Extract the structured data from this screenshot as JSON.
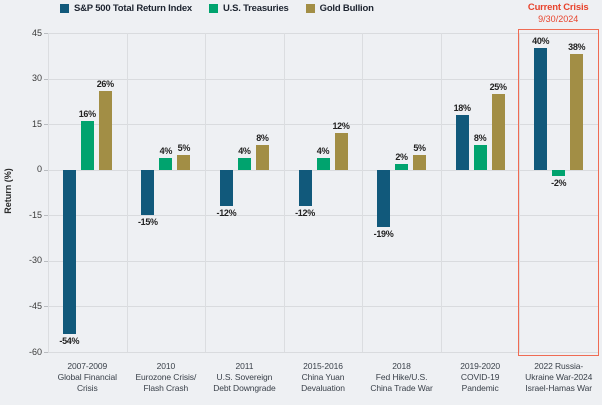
{
  "page": {
    "background": "#EEF0F3"
  },
  "legend": {
    "items": [
      {
        "label": "S&P 500 Total Return Index",
        "color": "#11597B"
      },
      {
        "label": "U.S. Treasuries",
        "color": "#00A36E"
      },
      {
        "label": "Gold Bullion",
        "color": "#A28E45"
      }
    ]
  },
  "current_crisis": {
    "title": "Current Crisis",
    "date": "9/30/2024",
    "text_color": "#E8432C",
    "box_color": "#EF6B53"
  },
  "chart_data": {
    "type": "bar",
    "title": "",
    "xlabel": "",
    "ylabel": "Return (%)",
    "ylim": [
      -60,
      45
    ],
    "yticks": [
      45,
      30,
      15,
      0,
      -15,
      -30,
      -45,
      -60
    ],
    "grid": true,
    "legend_position": "top",
    "value_label_suffix": "%",
    "categories": [
      "2007-2009\nGlobal Financial\nCrisis",
      "2010\nEurozone Crisis/\nFlash Crash",
      "2011\nU.S. Sovereign\nDebt Downgrade",
      "2015-2016\nChina Yuan\nDevaluation",
      "2018\nFed Hike/U.S.\nChina Trade War",
      "2019-2020\nCOVID-19\nPandemic",
      "2022 Russia-\nUkraine War-2024\nIsrael-Hamas War"
    ],
    "series": [
      {
        "name": "S&P 500 Total Return Index",
        "color": "#11597B",
        "values": [
          -54,
          -15,
          -12,
          -12,
          -19,
          18,
          40
        ]
      },
      {
        "name": "U.S. Treasuries",
        "color": "#00A36E",
        "values": [
          16,
          4,
          4,
          4,
          2,
          8,
          -2
        ]
      },
      {
        "name": "Gold Bullion",
        "color": "#A28E45",
        "values": [
          26,
          5,
          8,
          12,
          5,
          25,
          38
        ]
      }
    ],
    "annotation": {
      "group_index": 6,
      "label": "Current Crisis",
      "sublabel": "9/30/2024"
    }
  }
}
